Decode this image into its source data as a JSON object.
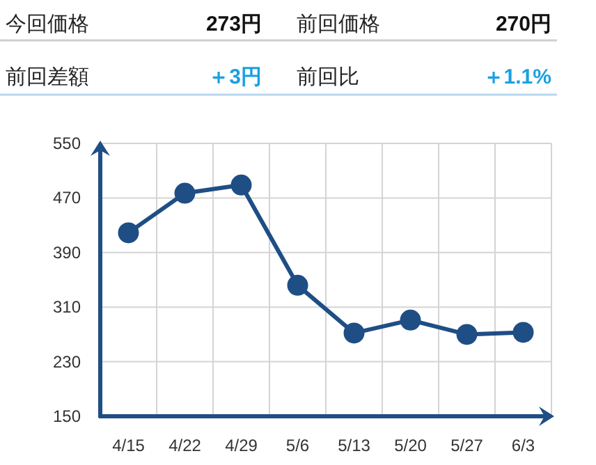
{
  "chart_data": [
    {
      "type": "other",
      "annotations": [
        "今回価格",
        "273円",
        "前回価格",
        "270円",
        "前回差額",
        "＋3円",
        "前回比",
        "＋1.1%"
      ]
    },
    {
      "type": "line",
      "categories": [
        "4/15",
        "4/22",
        "4/29",
        "5/6",
        "5/13",
        "5/20",
        "5/27",
        "6/3"
      ],
      "values": [
        419,
        477,
        489,
        342,
        272,
        291,
        270,
        273
      ],
      "color": "#1f4e85",
      "ylim": [
        150,
        550
      ],
      "yticks": [
        150,
        230,
        310,
        390,
        470,
        550
      ],
      "grid": true,
      "marker": "circle",
      "line_style": "solid"
    }
  ]
}
